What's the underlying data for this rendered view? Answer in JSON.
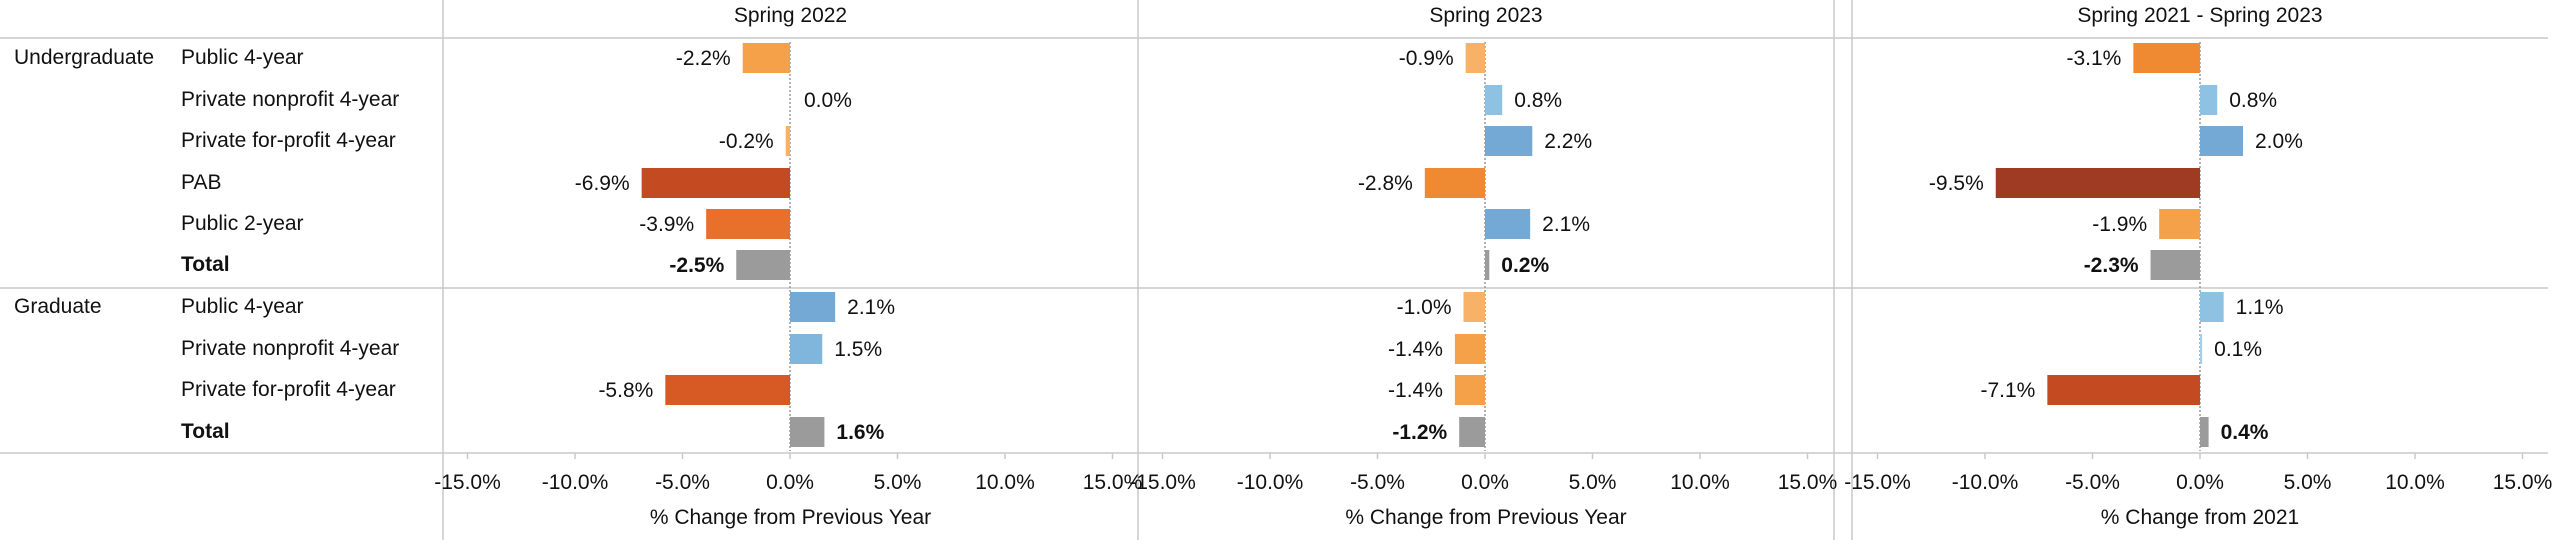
{
  "groups": [
    {
      "label": "Undergraduate"
    },
    {
      "label": "Graduate"
    }
  ],
  "rows": [
    {
      "group": 0,
      "label": "Public 4-year",
      "bold": false
    },
    {
      "group": 0,
      "label": "Private nonprofit 4-year",
      "bold": false
    },
    {
      "group": 0,
      "label": "Private for-profit 4-year",
      "bold": false
    },
    {
      "group": 0,
      "label": "PAB",
      "bold": false
    },
    {
      "group": 0,
      "label": "Public 2-year",
      "bold": false
    },
    {
      "group": 0,
      "label": "Total",
      "bold": true
    },
    {
      "group": 1,
      "label": "Public 4-year",
      "bold": false
    },
    {
      "group": 1,
      "label": "Private nonprofit 4-year",
      "bold": false
    },
    {
      "group": 1,
      "label": "Private for-profit 4-year",
      "bold": false
    },
    {
      "group": 1,
      "label": "Total",
      "bold": true
    }
  ],
  "chart_data": [
    {
      "type": "bar",
      "orientation": "horizontal",
      "title": "Spring 2022",
      "xlabel": "% Change from Previous Year",
      "xlim": [
        -15,
        15
      ],
      "ticks": [
        "-15.0%",
        "-10.0%",
        "-5.0%",
        "0.0%",
        "5.0%",
        "10.0%",
        "15.0%"
      ],
      "values": [
        -2.2,
        0.0,
        -0.2,
        -6.9,
        -3.9,
        -2.5,
        2.1,
        1.5,
        -5.8,
        1.6
      ],
      "labels": [
        "-2.2%",
        "0.0%",
        "-0.2%",
        "-6.9%",
        "-3.9%",
        "-2.5%",
        "2.1%",
        "1.5%",
        "-5.8%",
        "1.6%"
      ]
    },
    {
      "type": "bar",
      "orientation": "horizontal",
      "title": "Spring 2023",
      "xlabel": "% Change from Previous Year",
      "xlim": [
        -15,
        15
      ],
      "ticks": [
        "-15.0%",
        "-10.0%",
        "-5.0%",
        "0.0%",
        "5.0%",
        "10.0%",
        "15.0%"
      ],
      "values": [
        -0.9,
        0.8,
        2.2,
        -2.8,
        2.1,
        0.2,
        -1.0,
        -1.4,
        -1.4,
        -1.2
      ],
      "labels": [
        "-0.9%",
        "0.8%",
        "2.2%",
        "-2.8%",
        "2.1%",
        "0.2%",
        "-1.0%",
        "-1.4%",
        "-1.4%",
        "-1.2%"
      ]
    },
    {
      "type": "bar",
      "orientation": "horizontal",
      "title": "Spring 2021 - Spring 2023",
      "xlabel": "% Change from 2021",
      "xlim": [
        -15,
        15
      ],
      "ticks": [
        "-15.0%",
        "-10.0%",
        "-5.0%",
        "0.0%",
        "5.0%",
        "10.0%",
        "15.0%"
      ],
      "values": [
        -3.1,
        0.8,
        2.0,
        -9.5,
        -1.9,
        -2.3,
        1.1,
        0.1,
        -7.1,
        0.4
      ],
      "labels": [
        "-3.1%",
        "0.8%",
        "2.0%",
        "-9.5%",
        "-1.9%",
        "-2.3%",
        "1.1%",
        "0.1%",
        "-7.1%",
        "0.4%"
      ]
    }
  ],
  "colors": {
    "total": "#9b9b9b",
    "neg_scale": [
      "#f7b267",
      "#f4a14a",
      "#f08a32",
      "#e8702a",
      "#d75a24",
      "#c44a22",
      "#b2401f",
      "#9e3b22"
    ],
    "pos_scale": [
      "#a7cfe8",
      "#8fc1e3",
      "#80b6dc",
      "#74a9d6"
    ],
    "gridline": "#c8c8c8",
    "zero_line": "#9a9a9a",
    "text": "#111111"
  }
}
